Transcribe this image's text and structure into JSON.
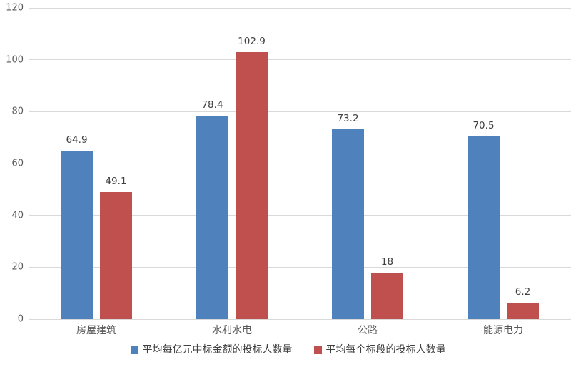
{
  "chart_data": {
    "type": "bar",
    "title": "",
    "categories": [
      "房屋建筑",
      "水利水电",
      "公路",
      "能源电力"
    ],
    "series": [
      {
        "name": "平均每亿元中标金额的投标人数量",
        "color": "#4F81BD",
        "values": [
          64.9,
          78.4,
          73.2,
          70.5
        ],
        "labels": [
          "64.9",
          "78.4",
          "73.2",
          "70.5"
        ]
      },
      {
        "name": "平均每个标段的投标人数量",
        "color": "#C0504D",
        "values": [
          49.1,
          102.9,
          18,
          6.2
        ],
        "labels": [
          "49.1",
          "102.9",
          "18",
          "6.2"
        ]
      }
    ],
    "xlabel": "",
    "ylabel": "",
    "ylim": [
      0,
      120
    ],
    "ytick_step": 20,
    "ytick_labels": [
      "0",
      "20",
      "40",
      "60",
      "80",
      "100",
      "120"
    ],
    "grid": true,
    "gridline_color": "#d9d9d9",
    "axis_text_color": "#595959",
    "data_label_color": "#404040",
    "legend_position": "bottom"
  }
}
